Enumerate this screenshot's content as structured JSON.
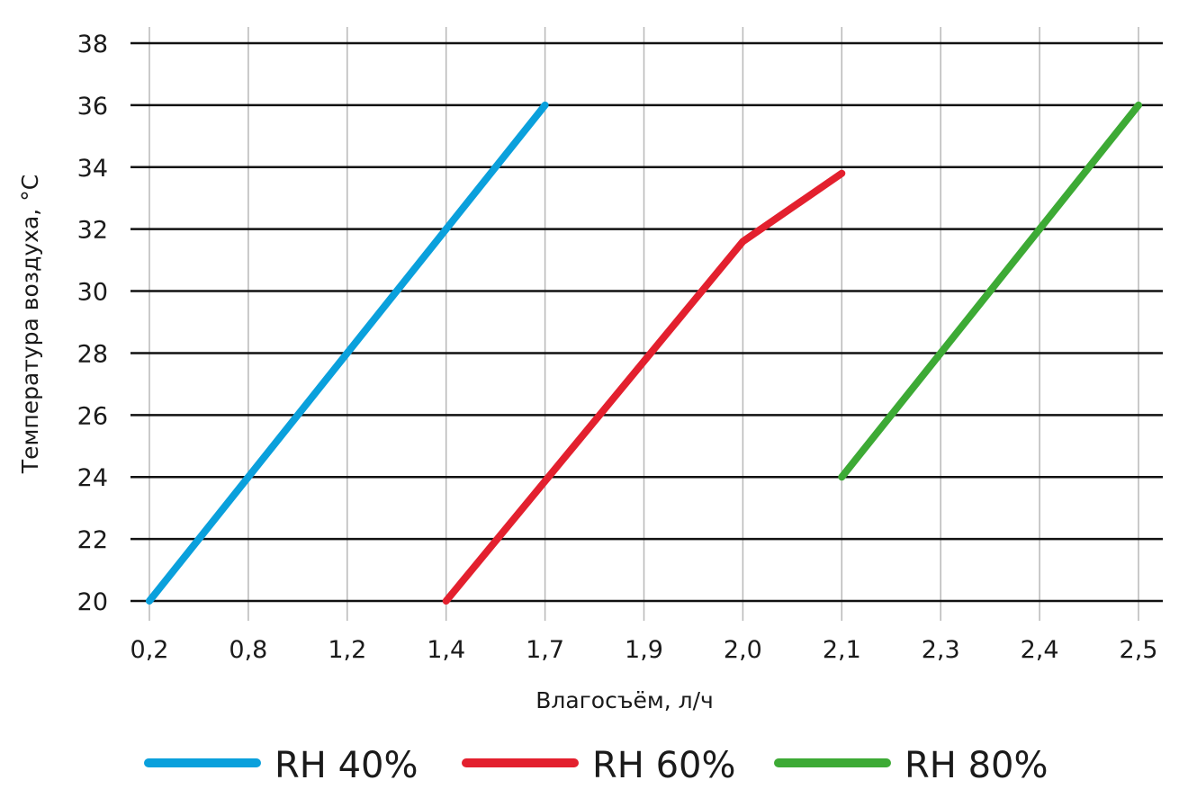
{
  "chart_data": {
    "type": "line",
    "title": "",
    "xlabel": "Влагосъём, л/ч",
    "ylabel": "Температура воздуха, °C",
    "x_categories": [
      "0,2",
      "0,8",
      "1,2",
      "1,4",
      "1,7",
      "1,9",
      "2,0",
      "2,1",
      "2,3",
      "2,4",
      "2,5"
    ],
    "y_ticks": [
      "20",
      "22",
      "24",
      "26",
      "28",
      "30",
      "32",
      "34",
      "36",
      "38"
    ],
    "ylim": [
      20,
      38
    ],
    "grid": true,
    "legend_position": "bottom",
    "series": [
      {
        "name": "RH 40%",
        "color": "#0AA0DC",
        "points": [
          {
            "x_index": 0,
            "y": 20
          },
          {
            "x_index": 4,
            "y": 36
          }
        ]
      },
      {
        "name": "RH 60%",
        "color": "#E3202E",
        "points": [
          {
            "x_index": 3,
            "y": 20
          },
          {
            "x_index": 6,
            "y": 31.6
          },
          {
            "x_index": 7,
            "y": 33.8
          }
        ]
      },
      {
        "name": "RH 80%",
        "color": "#3DAA35",
        "points": [
          {
            "x_index": 7,
            "y": 24
          },
          {
            "x_index": 10,
            "y": 36
          }
        ]
      }
    ]
  }
}
